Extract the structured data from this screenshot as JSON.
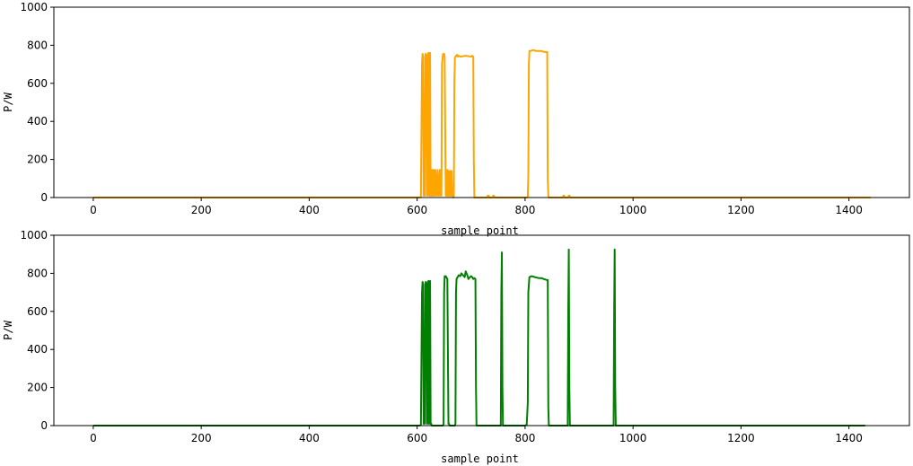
{
  "chart_data": [
    {
      "type": "line",
      "xlabel": "sample point",
      "ylabel": "P/W",
      "xlim": [
        -73,
        1512
      ],
      "ylim": [
        0,
        1000
      ],
      "xticks": [
        0,
        200,
        400,
        600,
        800,
        1000,
        1200,
        1400
      ],
      "yticks": [
        0,
        200,
        400,
        600,
        800,
        1000
      ],
      "grid": false,
      "series": [
        {
          "color": "#FFA500",
          "x": [
            0,
            600,
            605,
            607,
            609,
            610,
            611,
            612,
            614,
            615,
            616,
            617,
            618,
            619,
            620,
            621,
            622,
            623,
            624,
            625,
            626,
            627,
            628,
            629,
            630,
            632,
            633,
            634,
            636,
            637,
            638,
            640,
            641,
            642,
            644,
            645,
            646,
            648,
            649,
            650,
            651,
            653,
            655,
            656,
            657,
            658,
            659,
            660,
            661,
            662,
            663,
            664,
            665,
            666,
            667,
            668,
            669,
            670,
            671,
            672,
            673,
            674,
            675,
            677,
            680,
            690,
            700,
            702,
            703,
            704,
            705,
            706,
            708,
            730,
            731,
            732,
            733,
            740,
            741,
            742,
            743,
            800,
            803,
            805,
            806,
            807,
            808,
            810,
            815,
            820,
            825,
            830,
            835,
            840,
            841,
            842,
            843,
            844,
            846,
            870,
            871,
            872,
            873,
            880,
            881,
            882,
            883,
            1440
          ],
          "values": [
            0,
            0,
            0,
            5,
            700,
            755,
            740,
            10,
            10,
            745,
            755,
            745,
            10,
            10,
            750,
            760,
            10,
            10,
            760,
            10,
            10,
            145,
            10,
            145,
            10,
            145,
            10,
            145,
            10,
            10,
            145,
            10,
            10,
            145,
            10,
            10,
            700,
            755,
            755,
            755,
            740,
            10,
            10,
            145,
            10,
            140,
            10,
            10,
            140,
            10,
            10,
            140,
            10,
            10,
            0,
            10,
            600,
            735,
            740,
            745,
            745,
            750,
            740,
            745,
            740,
            745,
            740,
            745,
            740,
            740,
            200,
            0,
            0,
            0,
            10,
            10,
            0,
            0,
            10,
            10,
            0,
            0,
            0,
            5,
            120,
            700,
            770,
            770,
            775,
            770,
            770,
            770,
            765,
            765,
            765,
            100,
            10,
            0,
            0,
            0,
            10,
            10,
            0,
            0,
            10,
            10,
            0,
            0
          ]
        }
      ]
    },
    {
      "type": "line",
      "xlabel": "sample point",
      "ylabel": "P/W",
      "xlim": [
        -73,
        1512
      ],
      "ylim": [
        0,
        1000
      ],
      "xticks": [
        0,
        200,
        400,
        600,
        800,
        1000,
        1200,
        1400
      ],
      "yticks": [
        0,
        200,
        400,
        600,
        800,
        1000
      ],
      "grid": false,
      "series": [
        {
          "color": "#008000",
          "x": [
            0,
            600,
            605,
            607,
            609,
            610,
            611,
            612,
            614,
            615,
            616,
            617,
            618,
            619,
            620,
            621,
            622,
            623,
            624,
            625,
            626,
            627,
            648,
            649,
            650,
            651,
            653,
            655,
            656,
            658,
            659,
            660,
            661,
            662,
            663,
            664,
            666,
            670,
            671,
            672,
            673,
            675,
            677,
            680,
            682,
            685,
            688,
            690,
            693,
            695,
            698,
            700,
            702,
            704,
            706,
            708,
            709,
            710,
            711,
            712,
            713,
            754,
            755,
            756,
            757,
            758,
            759,
            760,
            800,
            803,
            805,
            806,
            808,
            812,
            818,
            825,
            830,
            835,
            840,
            842,
            843,
            844,
            845,
            878,
            879,
            880,
            881,
            882,
            883,
            963,
            964,
            965,
            966,
            967,
            968,
            1430
          ],
          "values": [
            0,
            0,
            0,
            5,
            700,
            755,
            745,
            10,
            10,
            740,
            755,
            745,
            10,
            10,
            755,
            760,
            10,
            10,
            760,
            10,
            10,
            0,
            0,
            10,
            700,
            785,
            785,
            775,
            770,
            10,
            10,
            0,
            0,
            0,
            0,
            0,
            0,
            0,
            10,
            700,
            770,
            780,
            790,
            785,
            800,
            790,
            780,
            810,
            790,
            770,
            780,
            785,
            780,
            770,
            775,
            770,
            200,
            0,
            0,
            0,
            0,
            0,
            0,
            700,
            910,
            200,
            0,
            0,
            0,
            5,
            120,
            700,
            780,
            785,
            780,
            775,
            775,
            770,
            765,
            765,
            100,
            0,
            0,
            0,
            0,
            600,
            925,
            200,
            0,
            0,
            0,
            600,
            925,
            200,
            0,
            0
          ]
        }
      ]
    }
  ]
}
